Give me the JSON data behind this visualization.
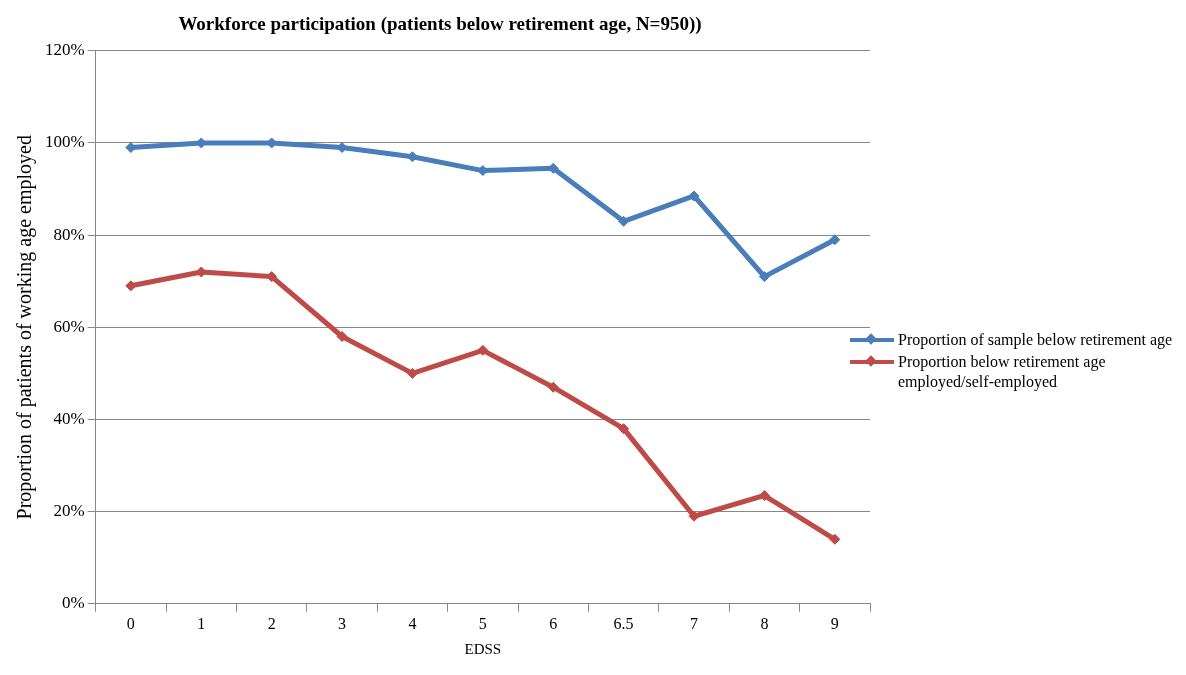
{
  "chart_data": {
    "type": "line",
    "title": "Workforce participation (patients below retirement age, N=950))",
    "xlabel": "EDSS",
    "ylabel": "Proportion of patients of working age employed",
    "categories": [
      "0",
      "1",
      "2",
      "3",
      "4",
      "5",
      "6",
      "6.5",
      "7",
      "8",
      "9"
    ],
    "series": [
      {
        "name": "Proportion of sample below retirement age",
        "color": "#4a7ebb",
        "values": [
          99,
          100,
          100,
          99,
          97,
          94,
          94.5,
          83,
          88.5,
          71,
          79
        ]
      },
      {
        "name": "Proportion below retirement age employed/self-employed",
        "color": "#be4b48",
        "values": [
          69,
          72,
          71,
          58,
          50,
          55,
          47,
          38,
          19,
          23.5,
          14
        ]
      }
    ],
    "ylim": [
      0,
      120
    ],
    "yticks": [
      {
        "value": 0,
        "label": "0%"
      },
      {
        "value": 20,
        "label": "20%"
      },
      {
        "value": 40,
        "label": "40%"
      },
      {
        "value": 60,
        "label": "60%"
      },
      {
        "value": 80,
        "label": "80%"
      },
      {
        "value": 100,
        "label": "100%"
      },
      {
        "value": 120,
        "label": "120%"
      }
    ],
    "grid": "y",
    "legend": "right",
    "marker": "diamond",
    "line_style": "solid"
  }
}
